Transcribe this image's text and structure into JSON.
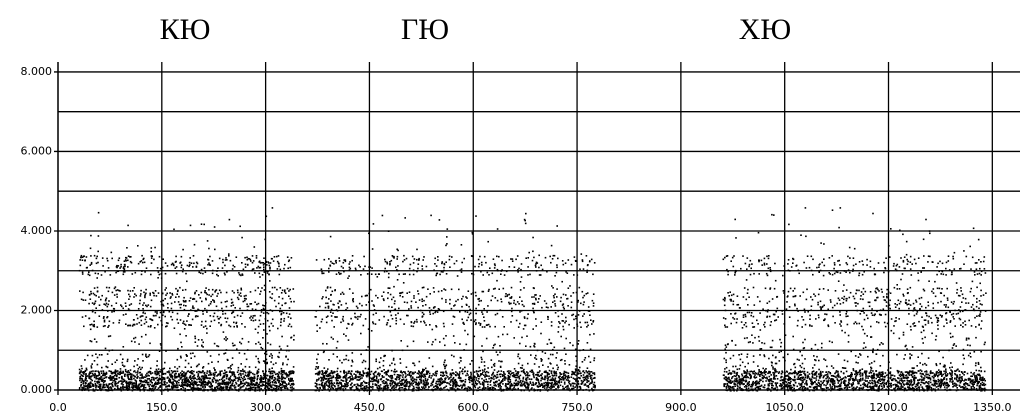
{
  "chart_data": {
    "type": "spectrogram",
    "annotations": [
      "КЮ",
      "ГЮ",
      "ХЮ"
    ],
    "segments": [
      {
        "label": "КЮ",
        "x": [
          30,
          340
        ]
      },
      {
        "label": "ГЮ",
        "x": [
          370,
          775
        ]
      },
      {
        "label": "ХЮ",
        "x": [
          960,
          1340
        ]
      }
    ],
    "xlim": [
      0,
      1390
    ],
    "ylim": [
      0,
      8.25
    ],
    "xticks": [
      {
        "value": 0,
        "label": "0.0"
      },
      {
        "value": 150,
        "label": "150.0"
      },
      {
        "value": 300,
        "label": "300.0"
      },
      {
        "value": 450,
        "label": "450.0"
      },
      {
        "value": 600,
        "label": "600.0"
      },
      {
        "value": 750,
        "label": "750.0"
      },
      {
        "value": 900,
        "label": "900.0"
      },
      {
        "value": 1050,
        "label": "1050.0"
      },
      {
        "value": 1200,
        "label": "1200.0"
      },
      {
        "value": 1350,
        "label": "1350.0"
      }
    ],
    "yticks": [
      {
        "value": 0,
        "label": "0.000"
      },
      {
        "value": 2,
        "label": "2.000"
      },
      {
        "value": 4,
        "label": "4.000"
      },
      {
        "value": 6,
        "label": "6.000"
      },
      {
        "value": 8,
        "label": "8.000"
      }
    ],
    "yminor": [
      1,
      3,
      5,
      7
    ],
    "grid": true,
    "color": "#000000"
  }
}
